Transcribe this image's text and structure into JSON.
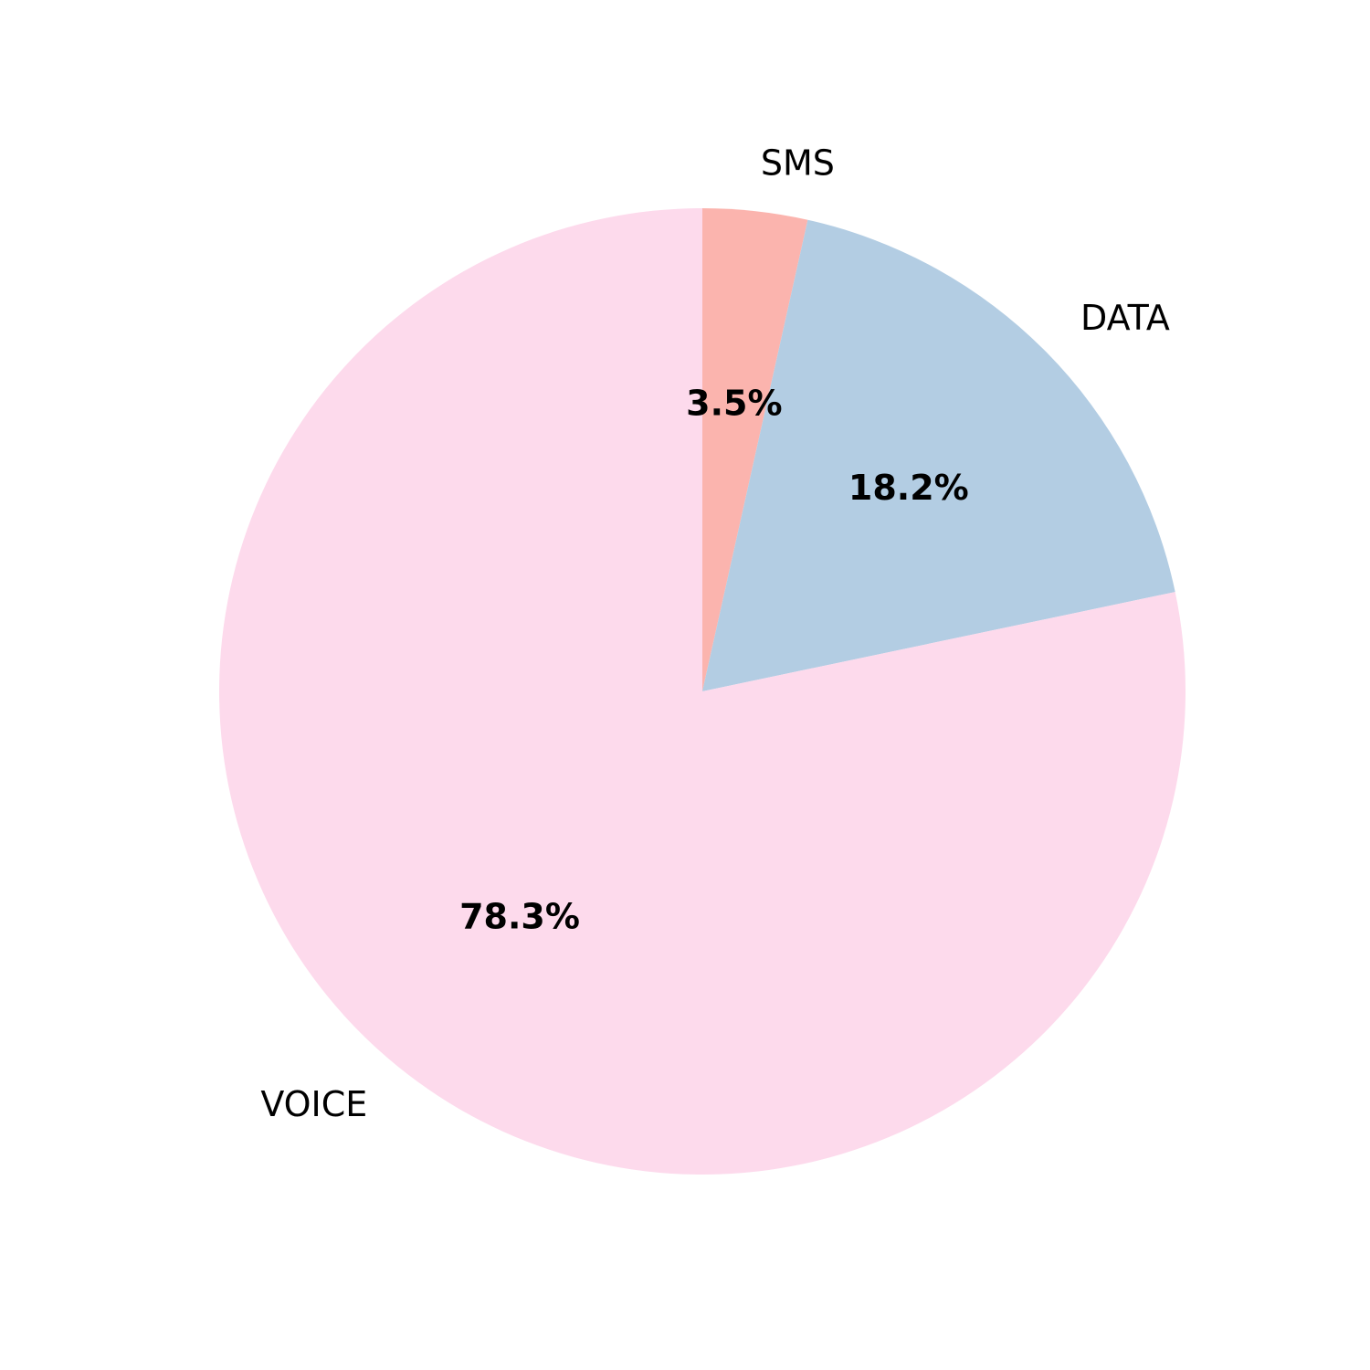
{
  "chart_data": {
    "type": "pie",
    "start_angle_deg": 90,
    "direction": "clockwise",
    "slices": [
      {
        "label": "SMS",
        "value": 3.5,
        "pct_label": "3.5%",
        "color": "#fbb4ae"
      },
      {
        "label": "DATA",
        "value": 18.2,
        "pct_label": "18.2%",
        "color": "#b3cde3"
      },
      {
        "label": "VOICE",
        "value": 78.3,
        "pct_label": "78.3%",
        "color": "#fddaec"
      }
    ]
  }
}
